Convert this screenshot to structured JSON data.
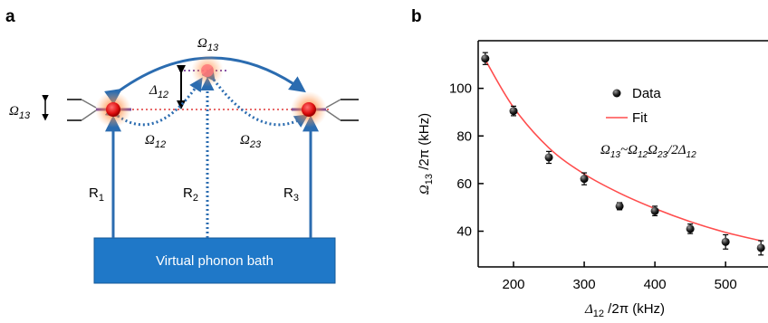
{
  "panel_a": {
    "label": "a",
    "bath_label": "Virtual phonon bath",
    "top_coupling": {
      "sym": "Ω",
      "sub": "13"
    },
    "left_coupling": {
      "sym": "Ω",
      "sub": "13"
    },
    "detuning": {
      "sym": "Δ",
      "sub": "12"
    },
    "coupling_12": {
      "sym": "Ω",
      "sub": "12"
    },
    "coupling_23": {
      "sym": "Ω",
      "sub": "23"
    },
    "r1": {
      "sym": "R",
      "sub": "1"
    },
    "r2": {
      "sym": "R",
      "sub": "2"
    },
    "r3": {
      "sym": "R",
      "sub": "3"
    },
    "colors": {
      "arrow": "#2b6cb0",
      "bath": "#1f78c8",
      "atom": "#e02020",
      "dashed": "#e86a6a"
    }
  },
  "panel_b": {
    "label": "b",
    "legend_data": "Data",
    "legend_fit": "Fit",
    "formula": {
      "p1": "Ω",
      "s1": "13",
      "p2": "~Ω",
      "s2": "12",
      "p3": "Ω",
      "s3": "23",
      "p4": "/2Δ",
      "s4": "12"
    },
    "ylabel": {
      "sym": "Ω",
      "sub": "13",
      "rest": " /2π (kHz)"
    },
    "xlabel": {
      "sym": "Δ",
      "sub": "12",
      "rest": " /2π (kHz)"
    }
  },
  "chart_data": {
    "type": "scatter",
    "title": "",
    "x": [
      160,
      200,
      250,
      300,
      350,
      400,
      450,
      500,
      550
    ],
    "y": [
      112.5,
      90.5,
      71,
      62,
      50.5,
      48.5,
      41,
      35.5,
      33
    ],
    "yerr": [
      2.5,
      2,
      2.5,
      2.5,
      1.5,
      2,
      2,
      3,
      3
    ],
    "series": [
      {
        "name": "Data",
        "style": "markers"
      },
      {
        "name": "Fit",
        "style": "line",
        "color": "#ff4d4d"
      }
    ],
    "fit_curve": {
      "x": [
        160,
        200,
        250,
        300,
        350,
        400,
        450,
        500,
        550
      ],
      "y": [
        112,
        92,
        75,
        64,
        56,
        49.5,
        44,
        39.5,
        36
      ]
    },
    "xlim": [
      150,
      560
    ],
    "ylim": [
      25,
      120
    ],
    "xticks": [
      "200",
      "300",
      "400",
      "500"
    ],
    "yticks": [
      "40",
      "60",
      "80",
      "100"
    ],
    "legend": "top-right",
    "grid": false
  }
}
